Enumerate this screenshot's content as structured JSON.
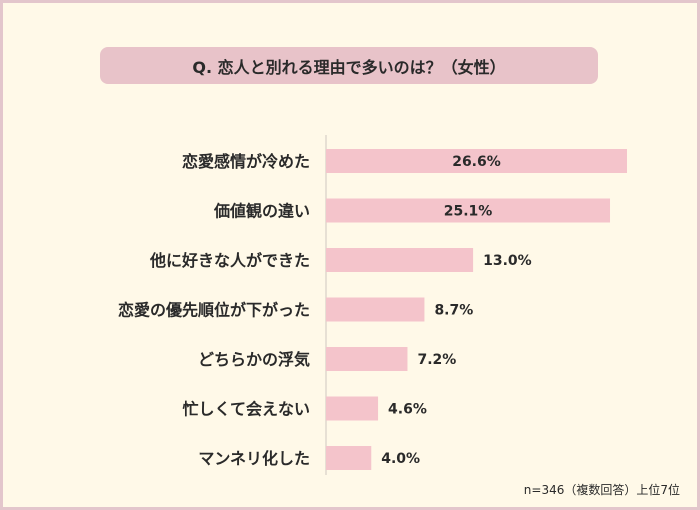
{
  "chart_data": {
    "type": "bar",
    "orientation": "horizontal",
    "title": "Q. 恋人と別れる理由で多いのは？（女性）",
    "categories": [
      "恋愛感情が冷めた",
      "価値観の違い",
      "他に好きな人ができた",
      "恋愛の優先順位が下がった",
      "どちらかの浮気",
      "忙しくて会えない",
      "マンネリ化した"
    ],
    "values": [
      26.6,
      25.1,
      13.0,
      8.7,
      7.2,
      4.6,
      4.0
    ],
    "value_labels": [
      "26.6%",
      "25.1%",
      "13.0%",
      "8.7%",
      "7.2%",
      "4.6%",
      "4.0%"
    ],
    "bar_color": "#f4c4cb",
    "note": "n=346（複数回答）上位7位"
  }
}
